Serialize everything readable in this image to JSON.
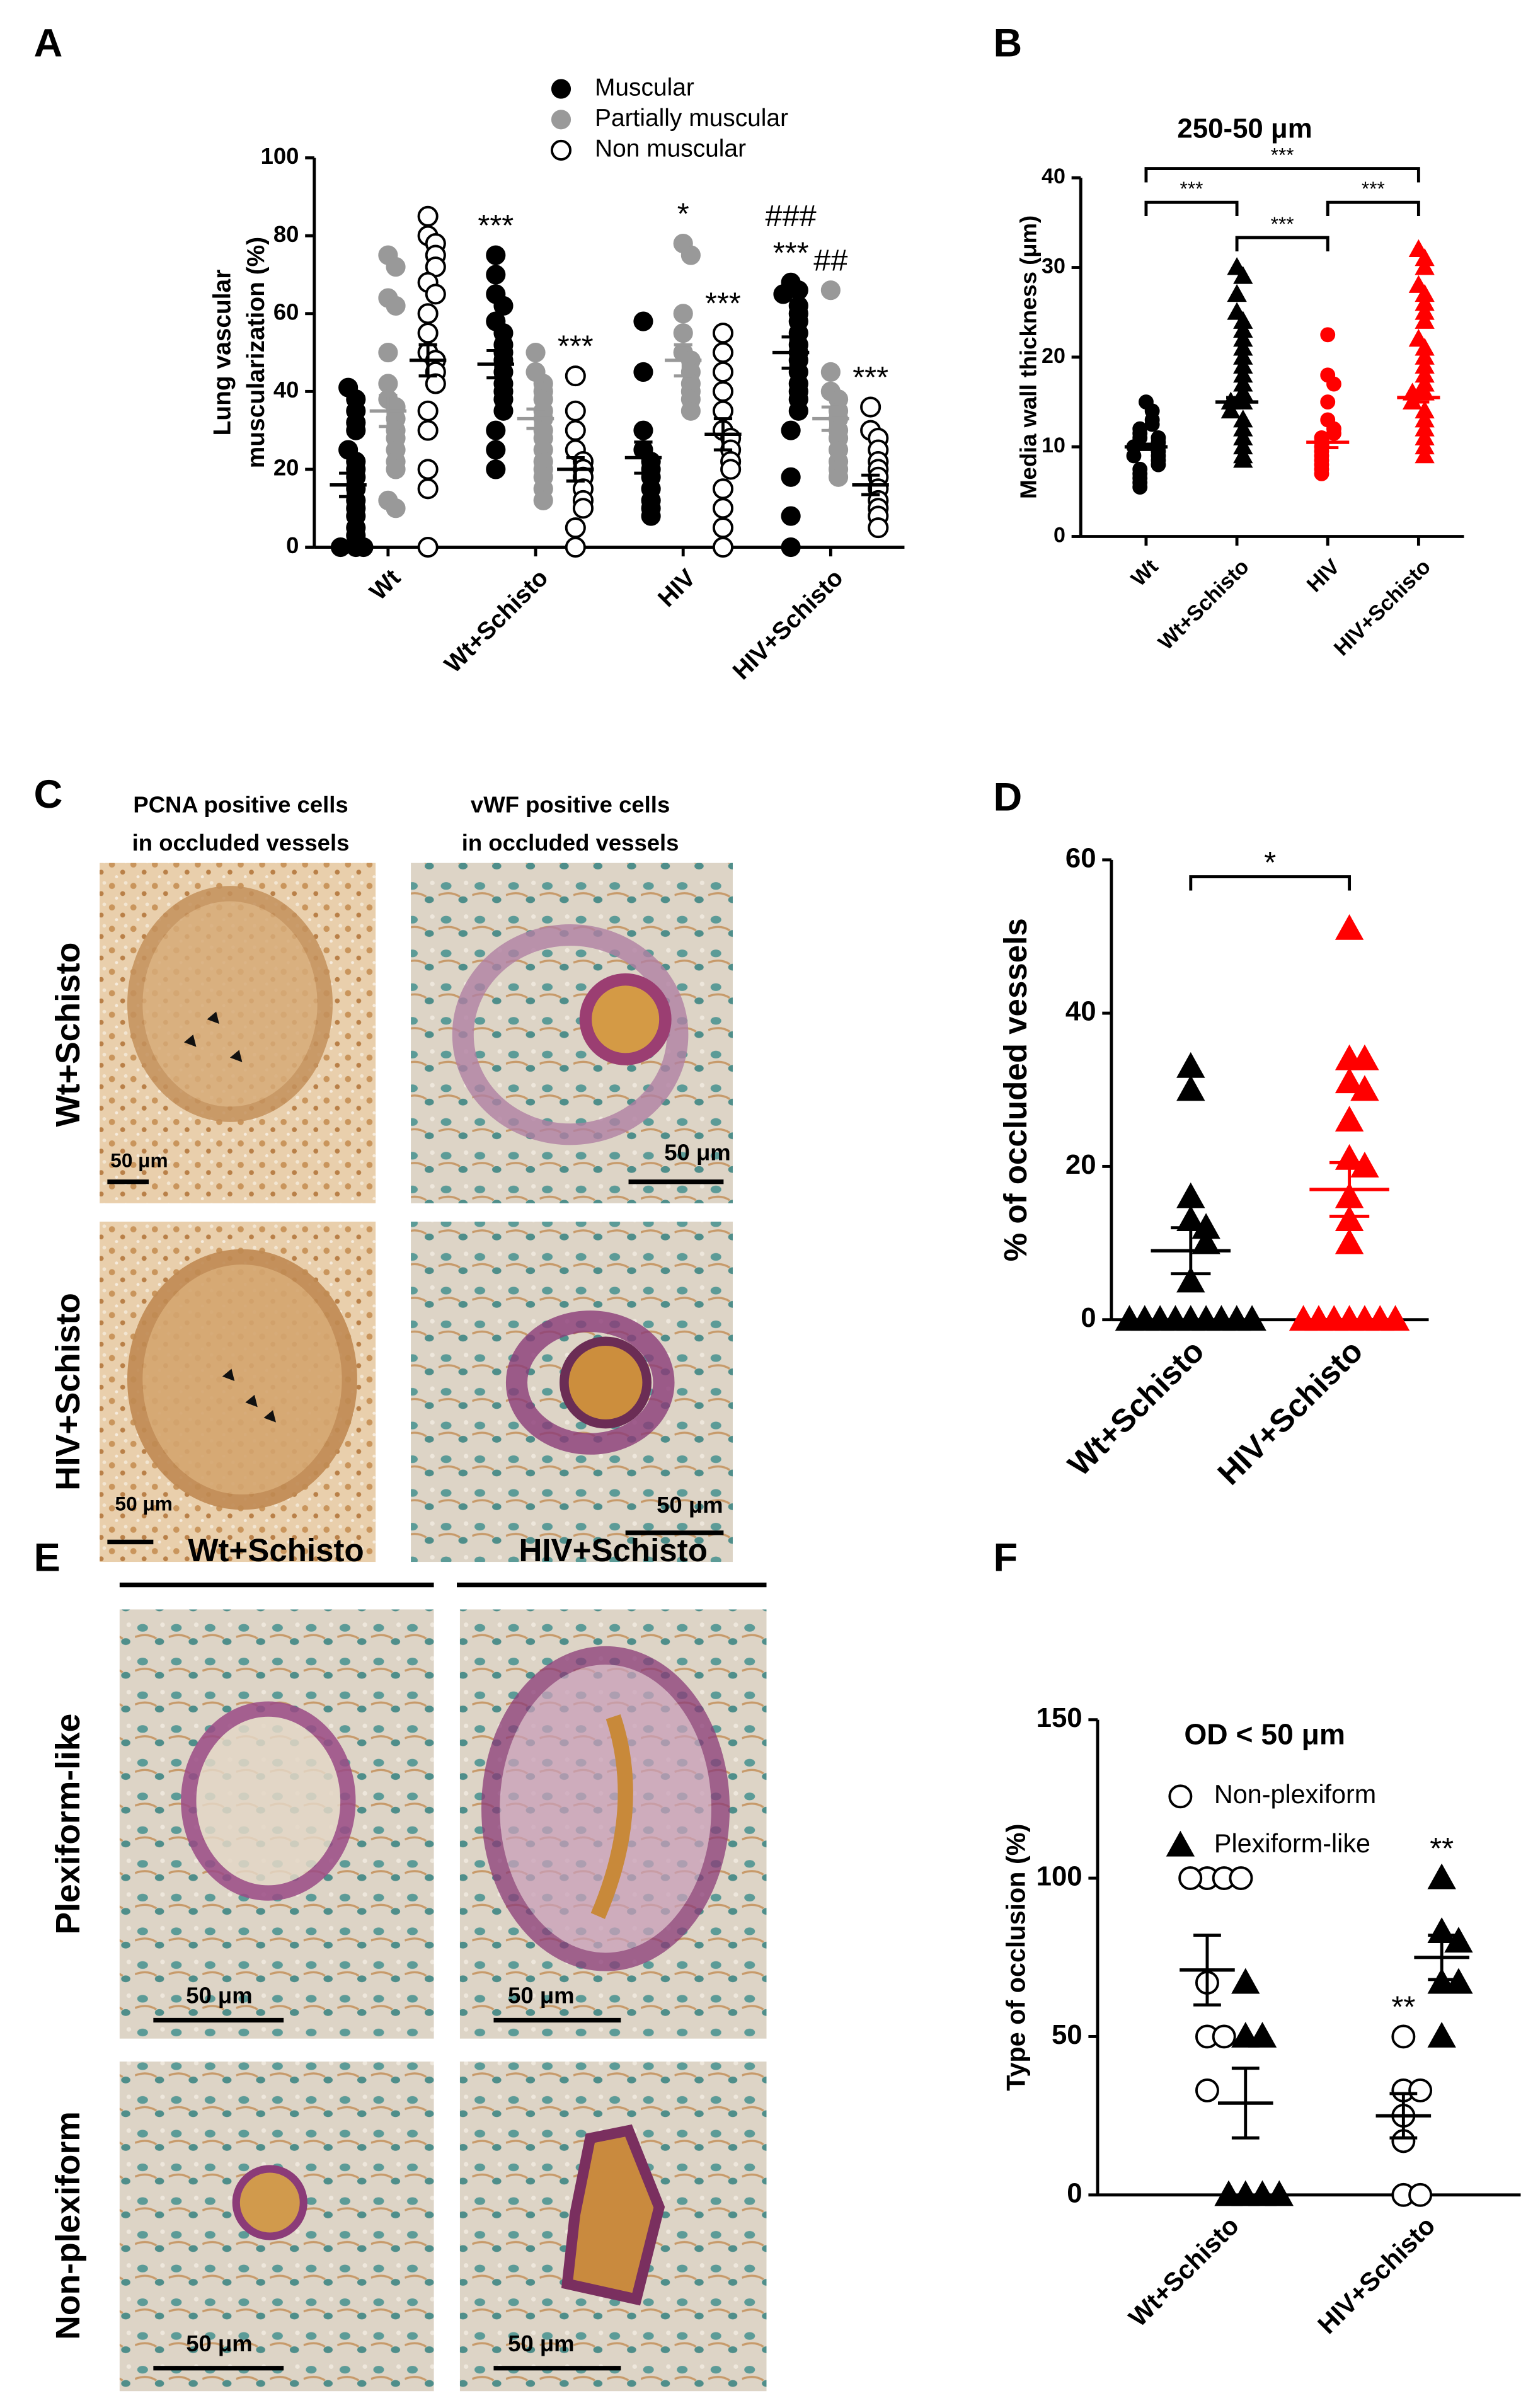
{
  "panel_labels": [
    "A",
    "B",
    "C",
    "D",
    "E",
    "F"
  ],
  "chart_data": [
    {
      "type": "strip",
      "ylabel": [
        "Lung vascular",
        "muscularization (%)"
      ],
      "ylim": [
        0,
        100
      ],
      "yticks": [
        0,
        20,
        40,
        60,
        80,
        100
      ],
      "categories": [
        "Wt",
        "Wt+Schisto",
        "HIV",
        "HIV+Schisto"
      ],
      "series": [
        {
          "name": "Muscular",
          "color": "#000000",
          "facecolor": "#000000",
          "marker": "circle",
          "means": [
            16,
            47,
            23,
            50
          ],
          "sems": [
            3,
            3.5,
            4,
            4
          ],
          "points": [
            [
              41,
              38,
              35,
              32,
              30,
              25,
              22,
              20,
              18,
              15,
              12,
              10,
              8,
              5,
              3,
              0,
              0,
              0
            ],
            [
              75,
              70,
              65,
              62,
              58,
              55,
              52,
              50,
              48,
              45,
              42,
              40,
              38,
              35,
              30,
              25,
              20
            ],
            [
              58,
              45,
              30,
              25,
              22,
              20,
              18,
              15,
              12,
              10,
              8
            ],
            [
              68,
              66,
              65,
              62,
              60,
              58,
              55,
              52,
              50,
              48,
              45,
              42,
              40,
              38,
              35,
              30,
              18,
              8,
              0
            ]
          ]
        },
        {
          "name": "Partially muscular",
          "color": "#999999",
          "facecolor": "#999999",
          "marker": "circle",
          "means": [
            35,
            33,
            48,
            33
          ],
          "sems": [
            4,
            2.5,
            4,
            3
          ],
          "points": [
            [
              75,
              72,
              64,
              62,
              50,
              42,
              38,
              36,
              33,
              30,
              28,
              25,
              22,
              20,
              12,
              10
            ],
            [
              50,
              45,
              42,
              40,
              38,
              35,
              33,
              30,
              28,
              25,
              22,
              20,
              18,
              15,
              12
            ],
            [
              78,
              75,
              60,
              55,
              50,
              48,
              45,
              42,
              40,
              38,
              35
            ],
            [
              66,
              45,
              40,
              38,
              35,
              33,
              30,
              28,
              25,
              22,
              20,
              18
            ]
          ]
        },
        {
          "name": "Non muscular",
          "color": "#000000",
          "facecolor": "none",
          "marker": "circle",
          "means": [
            48,
            20,
            29,
            16
          ],
          "sems": [
            4,
            3,
            4,
            2.5
          ],
          "points": [
            [
              85,
              80,
              78,
              75,
              72,
              68,
              65,
              60,
              55,
              50,
              48,
              45,
              42,
              35,
              30,
              20,
              15,
              0
            ],
            [
              44,
              35,
              30,
              25,
              22,
              20,
              18,
              15,
              12,
              10,
              5,
              0
            ],
            [
              55,
              50,
              45,
              40,
              35,
              30,
              28,
              25,
              22,
              20,
              15,
              10,
              5,
              0
            ],
            [
              36,
              30,
              28,
              25,
              22,
              20,
              18,
              15,
              12,
              10,
              8,
              5
            ]
          ]
        }
      ],
      "annotations": [
        {
          "category": 1,
          "series": 0,
          "labels": [
            "***"
          ]
        },
        {
          "category": 1,
          "series": 2,
          "labels": [
            "***"
          ]
        },
        {
          "category": 2,
          "series": 1,
          "labels": [
            "*"
          ]
        },
        {
          "category": 2,
          "series": 2,
          "labels": [
            "***"
          ]
        },
        {
          "category": 3,
          "series": 0,
          "labels": [
            "###",
            "***"
          ]
        },
        {
          "category": 3,
          "series": 1,
          "labels": [
            "##"
          ]
        },
        {
          "category": 3,
          "series": 2,
          "labels": [
            "***"
          ]
        }
      ]
    },
    {
      "type": "strip",
      "title": "250-50 μm",
      "ylabel": [
        "Media wall thickness (μm)"
      ],
      "ylim": [
        0,
        40
      ],
      "yticks": [
        0,
        10,
        20,
        30,
        40
      ],
      "categories": [
        "Wt",
        "Wt+Schisto",
        "HIV",
        "HIV+Schisto"
      ],
      "colors": [
        "#000000",
        "#000000",
        "#ff0000",
        "#ff0000"
      ],
      "markers": [
        "circle",
        "triangle",
        "circle",
        "triangle"
      ],
      "means": [
        10,
        15,
        10.5,
        15.5
      ],
      "sems": [
        0.3,
        0.5,
        0.6,
        0.5
      ],
      "points": [
        [
          15,
          14,
          13,
          12.5,
          12,
          11.5,
          11,
          11,
          10.5,
          10,
          10,
          9.5,
          9,
          9,
          8.5,
          8,
          7.5,
          7,
          6.5,
          6,
          5.5
        ],
        [
          30,
          29,
          27,
          25,
          24,
          23,
          22,
          21,
          20,
          19,
          18,
          17,
          16,
          15,
          15,
          14,
          13,
          12,
          11,
          10,
          9,
          8.5
        ],
        [
          22.5,
          18,
          17,
          15,
          13,
          12,
          11.5,
          11,
          10.5,
          10,
          9.5,
          9,
          8.5,
          8,
          7.5,
          7
        ],
        [
          32,
          31,
          30,
          28,
          27,
          26,
          25,
          24,
          22,
          21,
          20,
          19,
          18,
          17,
          16,
          16,
          15,
          14,
          13,
          12,
          11,
          10,
          9
        ]
      ],
      "comparisons": [
        {
          "between": [
            0,
            3
          ],
          "label": "***"
        },
        {
          "between": [
            0,
            1
          ],
          "label": "***"
        },
        {
          "between": [
            2,
            3
          ],
          "label": "***"
        },
        {
          "between": [
            1,
            2
          ],
          "label": "***"
        }
      ]
    },
    {
      "type": "strip",
      "ylabel": [
        "% of occluded vessels"
      ],
      "ylim": [
        0,
        60
      ],
      "yticks": [
        0,
        20,
        40,
        60
      ],
      "categories": [
        "Wt+Schisto",
        "HIV+Schisto"
      ],
      "colors": [
        "#000000",
        "#ff0000"
      ],
      "markers": [
        "triangle",
        "triangle"
      ],
      "means": [
        9,
        17
      ],
      "sems": [
        3,
        3.5
      ],
      "points": [
        [
          33,
          30,
          16,
          13,
          12,
          10,
          5,
          0,
          0,
          0,
          0,
          0,
          0,
          0,
          0,
          0
        ],
        [
          51,
          34,
          34,
          31,
          30,
          26,
          21,
          20,
          16,
          13,
          10,
          0,
          0,
          0,
          0,
          0,
          0,
          0
        ]
      ],
      "comparisons": [
        {
          "between": [
            0,
            1
          ],
          "label": "*"
        }
      ]
    },
    {
      "type": "strip",
      "title": "OD < 50 μm",
      "ylabel": [
        "Type of occlusion (%)"
      ],
      "ylim": [
        0,
        150
      ],
      "yticks": [
        0,
        50,
        100,
        150
      ],
      "categories": [
        "Wt+Schisto",
        "HIV+Schisto"
      ],
      "series": [
        {
          "name": "Non-plexiform",
          "color": "#000000",
          "facecolor": "none",
          "marker": "circle",
          "means": [
            71,
            25
          ],
          "sems": [
            11,
            7
          ],
          "points": [
            [
              100,
              100,
              100,
              100,
              67,
              50,
              50,
              33
            ],
            [
              50,
              33,
              33,
              25,
              17,
              0,
              0
            ]
          ]
        },
        {
          "name": "Plexiform-like",
          "color": "#000000",
          "facecolor": "#000000",
          "marker": "triangle",
          "means": [
            29,
            75
          ],
          "sems": [
            11,
            7
          ],
          "points": [
            [
              67,
              50,
              50,
              0,
              0,
              0,
              0
            ],
            [
              100,
              83,
              80,
              67,
              67,
              50
            ]
          ]
        }
      ],
      "annotations": [
        {
          "category": 1,
          "series": 0,
          "labels": [
            "**"
          ]
        },
        {
          "category": 1,
          "series": 1,
          "labels": [
            "**"
          ]
        }
      ]
    }
  ],
  "panel_C": {
    "columns": [
      [
        "PCNA positive cells",
        "in occluded vessels"
      ],
      [
        "vWF positive cells",
        "in occluded vessels"
      ]
    ],
    "rows": [
      "Wt+Schisto",
      "HIV+Schisto"
    ],
    "scale_bar": "50 μm"
  },
  "panel_E": {
    "columns": [
      "Wt+Schisto",
      "HIV+Schisto"
    ],
    "rows": [
      "Plexiform-like",
      "Non-plexiform"
    ],
    "scale_bar": "50 μm"
  }
}
